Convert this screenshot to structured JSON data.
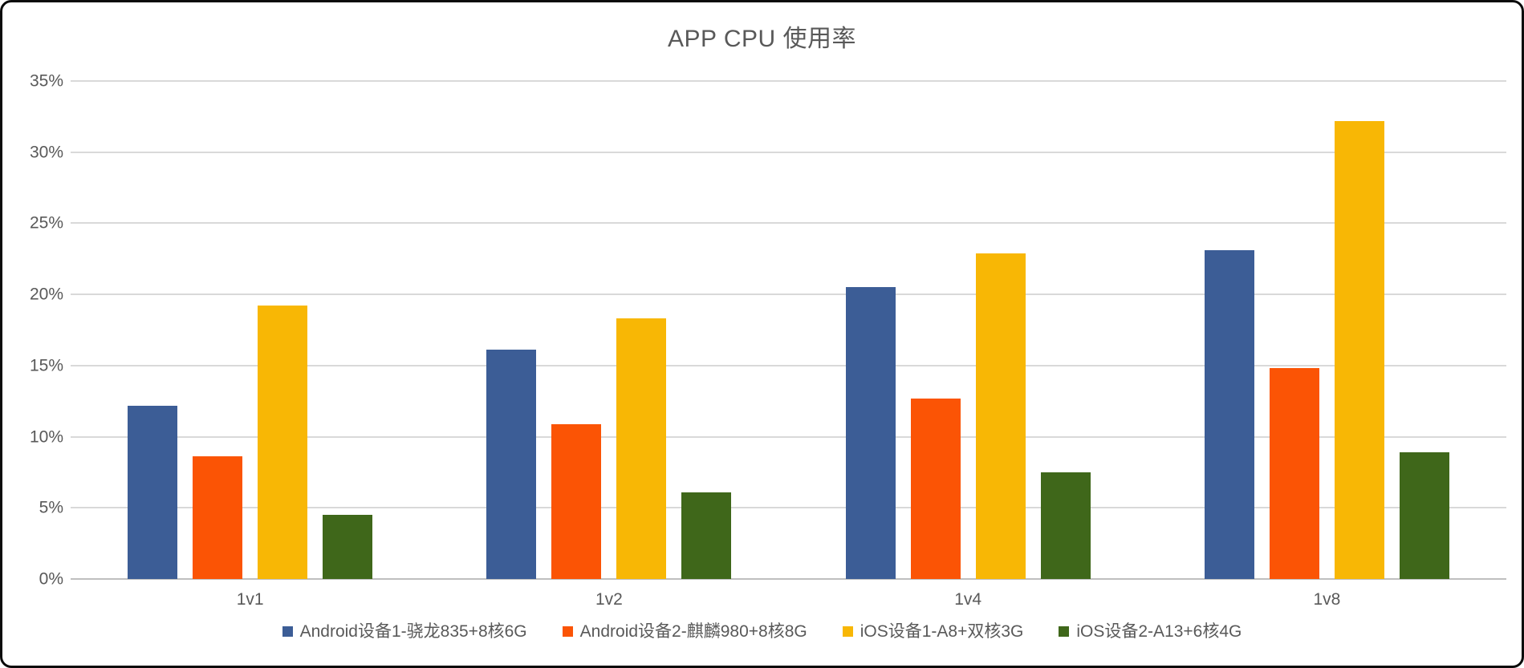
{
  "window": {
    "background": "#ffffff",
    "border_color": "#0b0b0b"
  },
  "chart_data": {
    "type": "bar",
    "title": "APP CPU 使用率",
    "categories": [
      "1v1",
      "1v2",
      "1v4",
      "1v8"
    ],
    "series": [
      {
        "name": "Android设备1-骁龙835+8核6G",
        "color": "#3C5D96",
        "values": [
          12.2,
          16.1,
          20.5,
          23.1
        ]
      },
      {
        "name": "Android设备2-麒麟980+8核8G",
        "color": "#FB5405",
        "values": [
          8.6,
          10.9,
          12.7,
          14.8
        ]
      },
      {
        "name": "iOS设备1-A8+双核3G",
        "color": "#F8B705",
        "values": [
          19.2,
          18.3,
          22.9,
          32.2
        ]
      },
      {
        "name": "iOS设备2-A13+6核4G",
        "color": "#3F671A",
        "values": [
          4.5,
          6.1,
          7.5,
          8.9
        ]
      }
    ],
    "xlabel": "",
    "ylabel": "",
    "ylim": [
      0,
      35
    ],
    "ytick_step": 5,
    "ytick_labels": [
      "0%",
      "5%",
      "10%",
      "15%",
      "20%",
      "25%",
      "30%",
      "35%"
    ],
    "grid": true,
    "legend_position": "bottom",
    "style_colors": {
      "gridline": "#D9D9D9",
      "zero_axis": "#BFBFBF",
      "text": "#595959"
    }
  }
}
